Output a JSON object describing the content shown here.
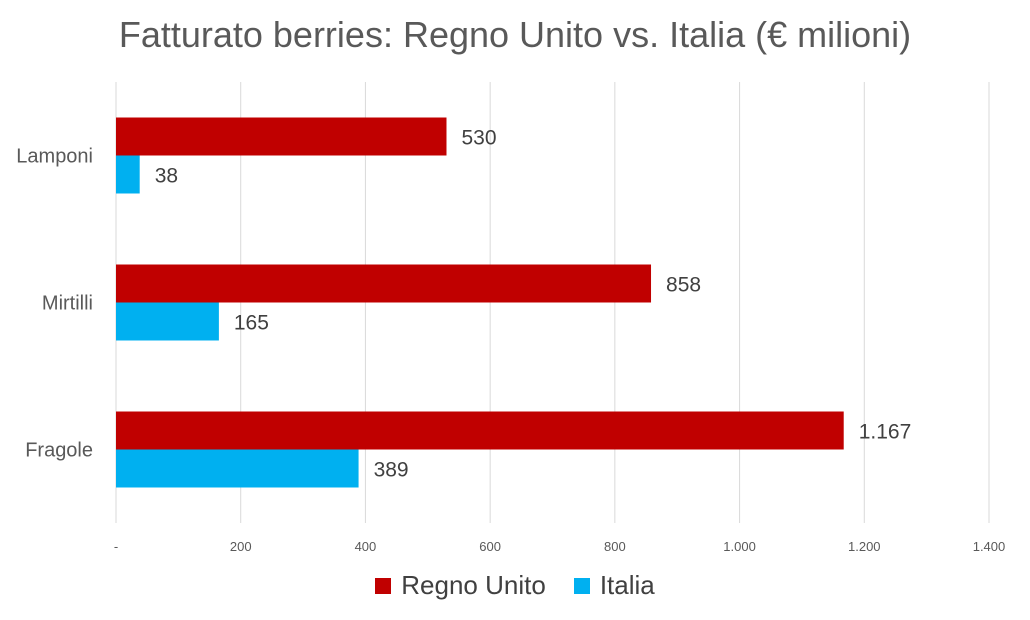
{
  "chart_data": {
    "type": "bar",
    "orientation": "horizontal",
    "title": "Fatturato berries: Regno Unito vs. Italia (€ milioni)",
    "categories": [
      "Lamponi",
      "Mirtilli",
      "Fragole"
    ],
    "series": [
      {
        "name": "Regno Unito",
        "values": [
          530,
          858,
          1167
        ],
        "labels": [
          "530",
          "858",
          "1.167"
        ],
        "color": "#C00000"
      },
      {
        "name": "Italia",
        "values": [
          38,
          165,
          389
        ],
        "labels": [
          "38",
          "165",
          "389"
        ],
        "color": "#00B0F0"
      }
    ],
    "xlim": [
      0,
      1400
    ],
    "xticks": [
      0,
      200,
      400,
      600,
      800,
      1000,
      1200,
      1400
    ],
    "xtick_labels": [
      "-",
      "200",
      "400",
      "600",
      "800",
      "1.000",
      "1.200",
      "1.400"
    ],
    "grid": true,
    "legend_position": "bottom"
  }
}
